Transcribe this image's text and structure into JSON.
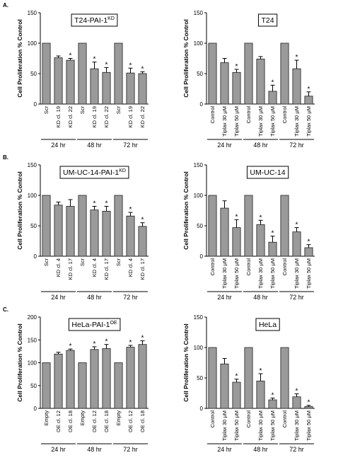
{
  "chart_data": [
    {
      "type": "bar",
      "panel": "A.",
      "title": {
        "text": "T24-PAI-1",
        "superscript": "KD"
      },
      "ylabel": "Cell Proliferation % Control",
      "categories": [
        "Scr",
        "KD cl. 19",
        "KD cl. 22",
        "Scr",
        "KD cl. 19",
        "KD cl. 22",
        "Scr",
        "KD cl. 19",
        "KD cl. 22"
      ],
      "groups": [
        "24 hr",
        "48 hr",
        "72 hr"
      ],
      "values": [
        100,
        76,
        72,
        100,
        58,
        52,
        100,
        51,
        50
      ],
      "errors": [
        null,
        3,
        3,
        null,
        11,
        8,
        null,
        8,
        3
      ],
      "significance": [
        null,
        null,
        "*",
        null,
        "*",
        "*",
        null,
        "*",
        "*"
      ],
      "color": "#9a9a9a",
      "ylim": [
        0,
        150
      ],
      "yticks": [
        0,
        50,
        100,
        150
      ]
    },
    {
      "type": "bar",
      "title": {
        "text": "T24"
      },
      "ylabel": "Cell Proliferation % Control",
      "categories": [
        "Control",
        "Tiplax 30 μM",
        "Tiplax 50 μM",
        "Control",
        "Tiplax 30 μM",
        "Tiplax 50 μM",
        "Control",
        "Tiplax 30 μM",
        "Tiplax 50 μM"
      ],
      "groups": [
        "24 hr",
        "48 hr",
        "72 hr"
      ],
      "values": [
        100,
        68,
        52,
        100,
        74,
        21,
        100,
        58,
        13
      ],
      "errors": [
        null,
        7,
        5,
        null,
        4,
        10,
        null,
        14,
        7
      ],
      "significance": [
        null,
        null,
        "*",
        null,
        null,
        "*",
        null,
        "*",
        "*"
      ],
      "color": "#9a9a9a",
      "ylim": [
        0,
        150
      ],
      "yticks": [
        0,
        50,
        100,
        150
      ]
    },
    {
      "type": "bar",
      "panel": "B.",
      "title": {
        "text": "UM-UC-14-PAI-1",
        "superscript": "KD"
      },
      "ylabel": "Cell Proliferation % Control",
      "categories": [
        "Scr",
        "KD cl. 4",
        "KD cl. 17",
        "Scr",
        "KD cl. 4",
        "KD cl. 17",
        "Scr",
        "KD cl. 4",
        "KD cl. 17"
      ],
      "groups": [
        "24 hr",
        "48 hr",
        "72 hr"
      ],
      "values": [
        100,
        84,
        82,
        100,
        76,
        74,
        100,
        66,
        49
      ],
      "errors": [
        null,
        5,
        11,
        null,
        6,
        8,
        null,
        6,
        6
      ],
      "significance": [
        null,
        null,
        null,
        null,
        "*",
        "*",
        null,
        "*",
        "*"
      ],
      "color": "#9a9a9a",
      "ylim": [
        0,
        150
      ],
      "yticks": [
        0,
        50,
        100,
        150
      ]
    },
    {
      "type": "bar",
      "title": {
        "text": "UM-UC-14"
      },
      "ylabel": "Cell Proliferation % Control",
      "categories": [
        "Control",
        "Tiplax 30 μM",
        "Tiplax 50 μM",
        "Control",
        "Tiplax 30 μM",
        "Tiplax 50 μM",
        "Control",
        "Tiplax 30 μM",
        "Tiplax 50 μM"
      ],
      "groups": [
        "24 hr",
        "48 hr",
        "72 hr"
      ],
      "values": [
        100,
        79,
        47,
        100,
        52,
        23,
        100,
        40,
        14
      ],
      "errors": [
        null,
        12,
        13,
        null,
        7,
        10,
        null,
        7,
        5
      ],
      "significance": [
        null,
        null,
        "*",
        null,
        "*",
        "*",
        null,
        "*",
        "*"
      ],
      "color": "#9a9a9a",
      "ylim": [
        0,
        150
      ],
      "yticks": [
        0,
        50,
        100,
        150
      ]
    },
    {
      "type": "bar",
      "panel": "C.",
      "title": {
        "text": "HeLa-PAI-1",
        "superscript": "OE"
      },
      "ylabel": "Cell Proliferation % Control",
      "categories": [
        "Empty",
        "OE cl. 12",
        "OE cl. 18",
        "Empty",
        "OE cl. 12",
        "OE cl. 18",
        "Empty",
        "OE cl. 12",
        "OE cl. 18"
      ],
      "groups": [
        "24 hr",
        "48 hr",
        "72 hr"
      ],
      "values": [
        100,
        119,
        127,
        100,
        129,
        131,
        100,
        134,
        140
      ],
      "errors": [
        null,
        4,
        3,
        null,
        6,
        9,
        null,
        4,
        8
      ],
      "significance": [
        null,
        null,
        "*",
        null,
        "*",
        "*",
        null,
        "*",
        "*"
      ],
      "color": "#9a9a9a",
      "ylim": [
        0,
        200
      ],
      "yticks": [
        0,
        50,
        100,
        150,
        200
      ]
    },
    {
      "type": "bar",
      "title": {
        "text": "HeLa"
      },
      "ylabel": "Cell Proliferation % Control",
      "categories": [
        "Control",
        "Tiplax 30 μM",
        "Tiplax 50 μM",
        "Control",
        "Tiplax 30 μM",
        "Tiplax 50 μM",
        "Control",
        "Tiplax 30 μM",
        "Tiplax 50 μM"
      ],
      "groups": [
        "24 hr",
        "48 hr",
        "72 hr"
      ],
      "values": [
        100,
        73,
        43,
        100,
        45,
        14,
        100,
        19,
        3
      ],
      "errors": [
        null,
        9,
        5,
        null,
        12,
        3,
        null,
        5,
        2
      ],
      "significance": [
        null,
        null,
        "*",
        null,
        "*",
        "*",
        null,
        "*",
        "*"
      ],
      "color": "#9a9a9a",
      "ylim": [
        0,
        150
      ],
      "yticks": [
        0,
        50,
        100,
        150
      ]
    }
  ]
}
